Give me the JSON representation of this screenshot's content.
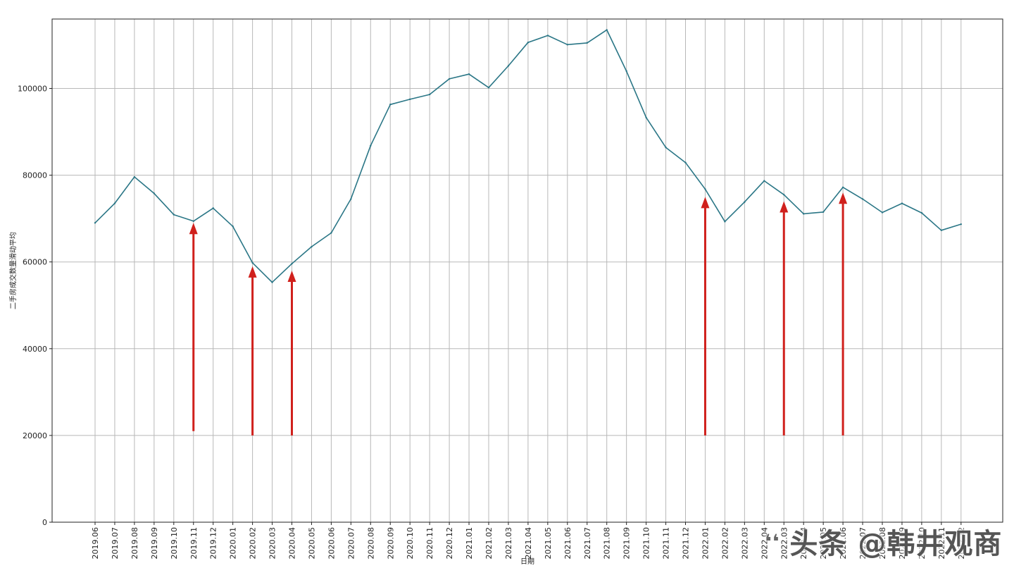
{
  "chart_data": {
    "type": "line",
    "xlabel": "日期",
    "ylabel": "二手房成交数量滑动平均",
    "x": [
      "2019.06",
      "2019.07",
      "2019.08",
      "2019.09",
      "2019.10",
      "2019.11",
      "2019.12",
      "2020.01",
      "2020.02",
      "2020.03",
      "2020.04",
      "2020.05",
      "2020.06",
      "2020.07",
      "2020.08",
      "2020.09",
      "2020.10",
      "2020.11",
      "2020.12",
      "2021.01",
      "2021.02",
      "2021.03",
      "2021.04",
      "2021.05",
      "2021.06",
      "2021.07",
      "2021.08",
      "2021.09",
      "2021.10",
      "2021.11",
      "2021.12",
      "2022.01",
      "2022.02",
      "2022.03",
      "2022.04",
      "2022.03",
      "2022.04",
      "2022.05",
      "2022.06",
      "2022.07",
      "2022.08",
      "2022.09",
      "2022.10",
      "2022.11",
      "2022.12"
    ],
    "yticks": [
      0,
      20000,
      40000,
      60000,
      80000,
      100000
    ],
    "ylim": [
      0,
      116000
    ],
    "grid": true,
    "series": [
      {
        "color": "#2a7686",
        "values": [
          69000,
          73500,
          79600,
          75800,
          70900,
          69400,
          72400,
          68200,
          59800,
          55300,
          59600,
          63500,
          66700,
          74500,
          86800,
          96300,
          97500,
          98600,
          102200,
          103300,
          100200,
          105200,
          110600,
          112200,
          110100,
          110500,
          113500,
          104000,
          93300,
          86400,
          82900,
          76800,
          69300,
          73800,
          78700,
          75500,
          71100,
          71500,
          77200,
          74500,
          71400,
          73500,
          71300,
          67300,
          68700
        ]
      }
    ],
    "annotations": [
      {
        "type": "arrow",
        "color": "#d0201c",
        "x_index": 5,
        "from_value": 21000,
        "to_value": 69000
      },
      {
        "type": "arrow",
        "color": "#d0201c",
        "x_index": 8,
        "from_value": 20000,
        "to_value": 59000
      },
      {
        "type": "arrow",
        "color": "#d0201c",
        "x_index": 10,
        "from_value": 20000,
        "to_value": 58000
      },
      {
        "type": "arrow",
        "color": "#d0201c",
        "x_index": 31,
        "from_value": 20000,
        "to_value": 75000
      },
      {
        "type": "arrow",
        "color": "#d0201c",
        "x_index": 35,
        "from_value": 20000,
        "to_value": 74000
      },
      {
        "type": "arrow",
        "color": "#d0201c",
        "x_index": 38,
        "from_value": 20000,
        "to_value": 76000
      }
    ]
  },
  "watermark": {
    "text": "头条 @韩井观商",
    "icon": "toutiao-logo-icon"
  }
}
